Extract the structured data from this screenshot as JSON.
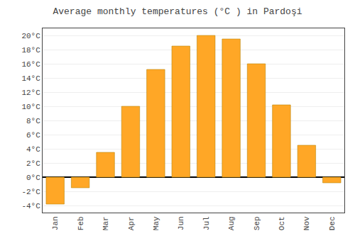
{
  "chart_data": {
    "type": "bar",
    "title": "Average monthly temperatures (°C ) in Pardoşi",
    "categories": [
      "Jan",
      "Feb",
      "Mar",
      "Apr",
      "May",
      "Jun",
      "Jul",
      "Aug",
      "Sep",
      "Oct",
      "Nov",
      "Dec"
    ],
    "values": [
      -3.8,
      -1.5,
      3.5,
      10.0,
      15.2,
      18.5,
      20.0,
      19.5,
      16.0,
      10.2,
      4.5,
      -0.8
    ],
    "color": "#FFA726",
    "ylim": [
      -5,
      21
    ],
    "yticks": [
      {
        "value": -4,
        "label": "-4°C"
      },
      {
        "value": -2,
        "label": "-2°C"
      },
      {
        "value": 0,
        "label": "0°C"
      },
      {
        "value": 2,
        "label": "2°C"
      },
      {
        "value": 4,
        "label": "4°C"
      },
      {
        "value": 6,
        "label": "6°C"
      },
      {
        "value": 8,
        "label": "8°C"
      },
      {
        "value": 10,
        "label": "10°C"
      },
      {
        "value": 12,
        "label": "12°C"
      },
      {
        "value": 14,
        "label": "14°C"
      },
      {
        "value": 16,
        "label": "16°C"
      },
      {
        "value": 18,
        "label": "18°C"
      },
      {
        "value": 20,
        "label": "20°C"
      }
    ],
    "grid": true
  }
}
